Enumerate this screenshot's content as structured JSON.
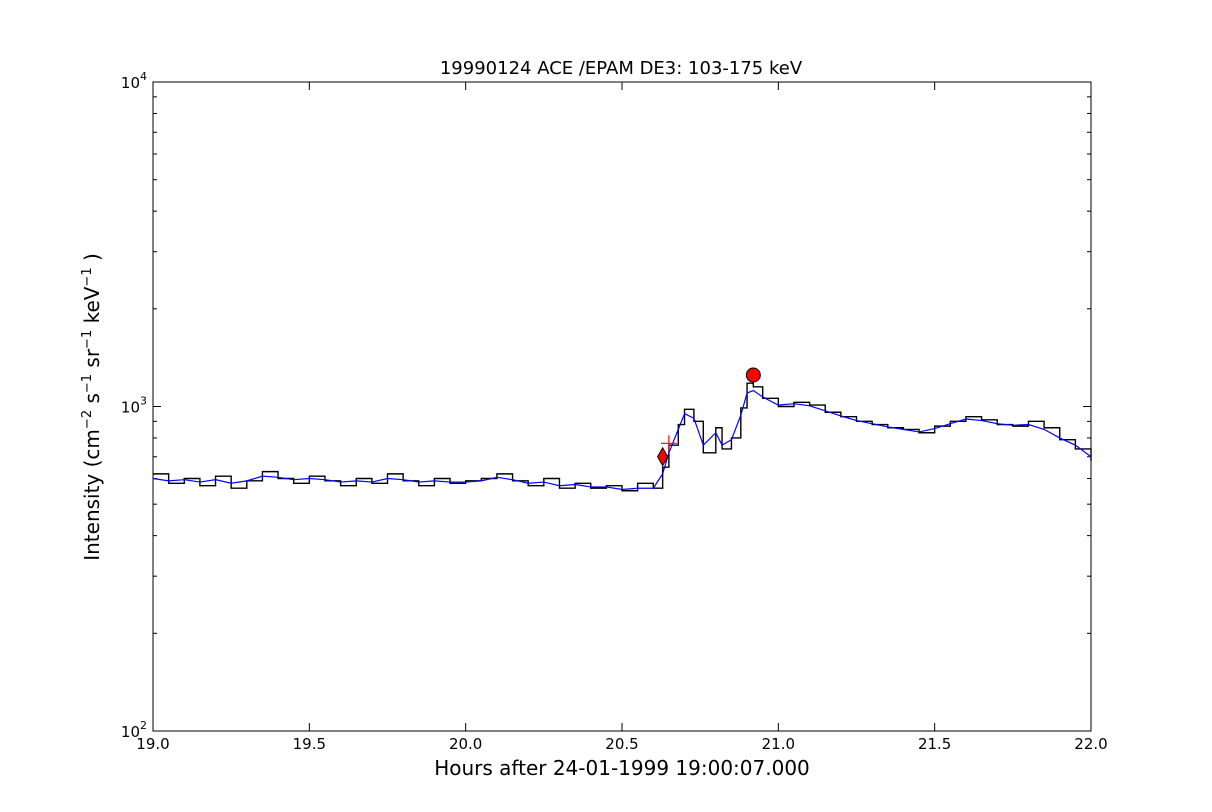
{
  "chart_data": {
    "type": "line",
    "title": "19990124 ACE /EPAM DE3: 103-175 keV",
    "xlabel": "Hours after 24-01-1999 19:00:07.000",
    "ylabel": {
      "prefix": "Intensity (cm",
      "sup1": "−2",
      "mid1": " s",
      "sup2": "−1",
      "mid2": " sr",
      "sup3": "−1",
      "mid3": " keV",
      "sup4": "−1",
      "suffix": " )"
    },
    "xlim": [
      19.0,
      22.0
    ],
    "ylim": [
      100,
      10000
    ],
    "yscale": "log",
    "grid": false,
    "xticks": [
      "19.0",
      "19.5",
      "20.0",
      "20.5",
      "21.0",
      "21.5",
      "22.0"
    ],
    "yticks": [
      {
        "value": 100,
        "base": "10",
        "exp": "2"
      },
      {
        "value": 1000,
        "base": "10",
        "exp": "3"
      },
      {
        "value": 10000,
        "base": "10",
        "exp": "4"
      }
    ],
    "colors": {
      "raw": "#000000",
      "smoothed": "#0000ff",
      "markers": "#ff0000"
    },
    "series": [
      {
        "style": "steps",
        "color": "#000000",
        "x": [
          19.0,
          19.05,
          19.1,
          19.15,
          19.2,
          19.25,
          19.3,
          19.35,
          19.4,
          19.45,
          19.5,
          19.55,
          19.6,
          19.65,
          19.7,
          19.75,
          19.8,
          19.85,
          19.9,
          19.95,
          20.0,
          20.05,
          20.1,
          20.15,
          20.2,
          20.25,
          20.3,
          20.35,
          20.4,
          20.45,
          20.5,
          20.55,
          20.6,
          20.63,
          20.65,
          20.68,
          20.7,
          20.73,
          20.76,
          20.8,
          20.82,
          20.85,
          20.88,
          20.9,
          20.92,
          20.95,
          21.0,
          21.05,
          21.1,
          21.15,
          21.2,
          21.25,
          21.3,
          21.35,
          21.4,
          21.45,
          21.5,
          21.55,
          21.6,
          21.65,
          21.7,
          21.75,
          21.8,
          21.85,
          21.9,
          21.95,
          22.0
        ],
        "y": [
          620,
          580,
          600,
          570,
          610,
          560,
          590,
          630,
          600,
          580,
          610,
          590,
          570,
          600,
          580,
          620,
          590,
          570,
          600,
          580,
          590,
          600,
          620,
          590,
          570,
          600,
          560,
          580,
          560,
          570,
          550,
          580,
          560,
          650,
          760,
          880,
          980,
          900,
          720,
          860,
          740,
          800,
          990,
          1180,
          1150,
          1060,
          1000,
          1030,
          1010,
          960,
          930,
          900,
          880,
          860,
          850,
          830,
          870,
          900,
          930,
          910,
          880,
          870,
          900,
          860,
          790,
          740,
          680
        ]
      },
      {
        "style": "line",
        "color": "#0000ff",
        "x": [
          19.0,
          19.05,
          19.1,
          19.15,
          19.2,
          19.25,
          19.3,
          19.35,
          19.4,
          19.45,
          19.5,
          19.55,
          19.6,
          19.65,
          19.7,
          19.75,
          19.8,
          19.85,
          19.9,
          19.95,
          20.0,
          20.05,
          20.1,
          20.15,
          20.2,
          20.25,
          20.3,
          20.35,
          20.4,
          20.45,
          20.5,
          20.55,
          20.6,
          20.63,
          20.65,
          20.68,
          20.7,
          20.73,
          20.76,
          20.8,
          20.82,
          20.85,
          20.88,
          20.9,
          20.92,
          20.95,
          21.0,
          21.05,
          21.1,
          21.15,
          21.2,
          21.25,
          21.3,
          21.35,
          21.4,
          21.45,
          21.5,
          21.55,
          21.6,
          21.65,
          21.7,
          21.75,
          21.8,
          21.85,
          21.9,
          21.95,
          22.0
        ],
        "y": [
          600,
          590,
          595,
          585,
          595,
          580,
          590,
          610,
          605,
          595,
          600,
          595,
          585,
          590,
          585,
          600,
          595,
          585,
          590,
          585,
          585,
          590,
          605,
          595,
          580,
          585,
          570,
          575,
          565,
          565,
          555,
          560,
          560,
          620,
          720,
          850,
          950,
          920,
          760,
          830,
          760,
          790,
          940,
          1100,
          1120,
          1070,
          1010,
          1020,
          1005,
          970,
          935,
          905,
          885,
          865,
          850,
          835,
          855,
          885,
          915,
          905,
          885,
          875,
          880,
          850,
          800,
          760,
          700
        ]
      }
    ],
    "markers": [
      {
        "shape": "diamond",
        "x": 20.63,
        "y": 700
      },
      {
        "shape": "plus",
        "x": 20.65,
        "y": 770
      },
      {
        "shape": "circle",
        "x": 20.92,
        "y": 1250
      }
    ]
  }
}
